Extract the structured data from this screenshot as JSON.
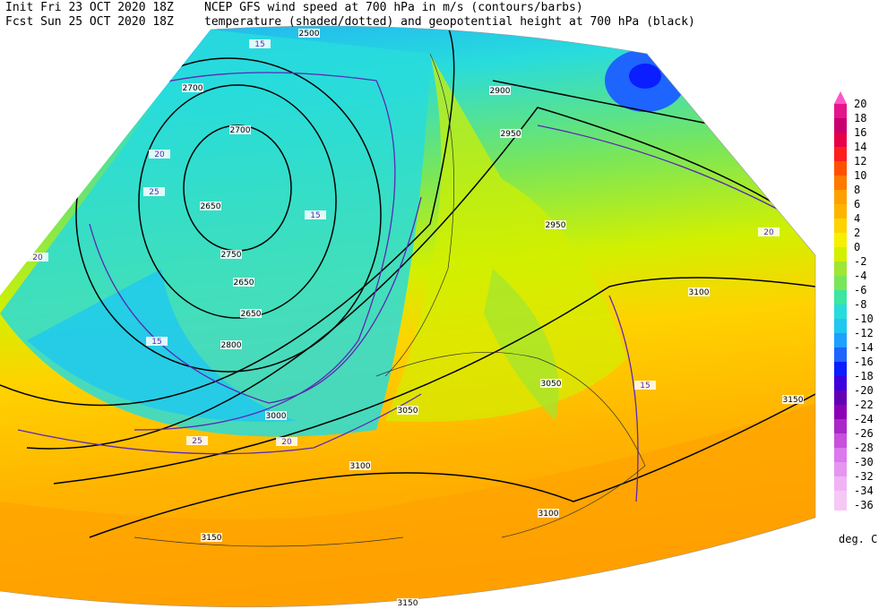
{
  "header": {
    "init": "Init  Fri 23 OCT 2020 18Z",
    "fcst": "Fcst Sun 25 OCT 2020 18Z",
    "title1": "NCEP GFS wind speed at 700 hPa in m/s (contours/barbs)",
    "title2": "temperature (shaded/dotted) and geopotential height at 700 hPa (black)"
  },
  "legend": {
    "unit": "deg. C",
    "levels": [
      "20",
      "18",
      "16",
      "14",
      "12",
      "10",
      "8",
      "6",
      "4",
      "2",
      "0",
      "-2",
      "-4",
      "-6",
      "-8",
      "-10",
      "-12",
      "-14",
      "-16",
      "-18",
      "-20",
      "-22",
      "-24",
      "-26",
      "-28",
      "-30",
      "-32",
      "-34",
      "-36"
    ],
    "colors": [
      "#ff55c8",
      "#e6148c",
      "#c8006e",
      "#e60046",
      "#ff1e1e",
      "#ff5000",
      "#ff7800",
      "#ffa000",
      "#ffb400",
      "#ffd200",
      "#f5f000",
      "#d2f000",
      "#a0e632",
      "#78e65a",
      "#3ce6a0",
      "#28dcdc",
      "#1ec8f0",
      "#1ea0ff",
      "#1e64ff",
      "#0a1eff",
      "#3c00dc",
      "#6400b4",
      "#8c00b4",
      "#aa28c8",
      "#c850dc",
      "#dc78f0",
      "#e696f0",
      "#f0b4f5",
      "#f5c8f5"
    ]
  },
  "map_labels": [
    "2500",
    "2700",
    "2700",
    "2650",
    "2750",
    "2650",
    "2650",
    "2800",
    "2900",
    "2950",
    "2950",
    "3000",
    "3050",
    "3050",
    "3100",
    "3100",
    "3100",
    "3150",
    "3150",
    "3150",
    "15",
    "20",
    "25",
    "15",
    "20",
    "15",
    "20",
    "25",
    "15",
    "20"
  ]
}
